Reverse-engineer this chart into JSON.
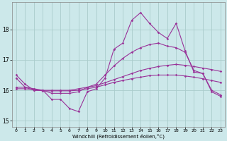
{
  "xlabel": "Windchill (Refroidissement éolien,°C)",
  "bg_color": "#cce8ea",
  "grid_color": "#aacccc",
  "line_color": "#993399",
  "x": [
    0,
    1,
    2,
    3,
    4,
    5,
    6,
    7,
    8,
    9,
    10,
    11,
    12,
    13,
    14,
    15,
    16,
    17,
    18,
    19,
    20,
    21,
    22,
    23
  ],
  "line1": [
    16.5,
    16.2,
    16.0,
    16.0,
    15.7,
    15.7,
    15.4,
    15.3,
    15.95,
    16.05,
    16.4,
    17.35,
    17.55,
    18.3,
    18.55,
    18.2,
    17.9,
    17.7,
    18.2,
    17.3,
    16.6,
    16.55,
    15.95,
    15.8
  ],
  "line2": [
    16.4,
    16.1,
    16.0,
    16.0,
    15.9,
    15.9,
    15.9,
    15.95,
    16.1,
    16.2,
    16.5,
    16.8,
    17.05,
    17.25,
    17.4,
    17.5,
    17.55,
    17.45,
    17.4,
    17.25,
    16.65,
    16.55,
    16.0,
    15.85
  ],
  "line3": [
    16.1,
    16.1,
    16.05,
    16.0,
    16.0,
    16.0,
    16.0,
    16.05,
    16.1,
    16.15,
    16.25,
    16.35,
    16.45,
    16.55,
    16.65,
    16.72,
    16.78,
    16.82,
    16.85,
    16.82,
    16.78,
    16.73,
    16.68,
    16.62
  ],
  "line4": [
    16.05,
    16.05,
    16.02,
    15.98,
    15.98,
    15.98,
    15.98,
    16.0,
    16.05,
    16.1,
    16.18,
    16.26,
    16.32,
    16.38,
    16.43,
    16.48,
    16.5,
    16.5,
    16.5,
    16.47,
    16.43,
    16.38,
    16.32,
    16.26
  ],
  "ylim": [
    14.8,
    18.9
  ],
  "yticks": [
    15,
    16,
    17,
    18
  ],
  "xlim": [
    -0.5,
    23.5
  ],
  "xticks": [
    0,
    1,
    2,
    3,
    4,
    5,
    6,
    7,
    8,
    9,
    10,
    11,
    12,
    13,
    14,
    15,
    16,
    17,
    18,
    19,
    20,
    21,
    22,
    23
  ]
}
